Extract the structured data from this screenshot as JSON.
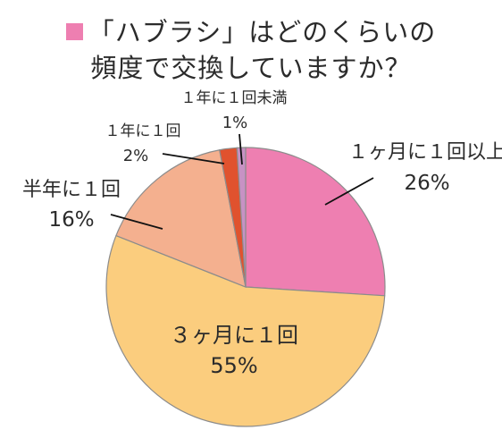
{
  "chart_data": {
    "type": "pie",
    "title_lines": [
      "「ハブラシ」はどのくらいの",
      "頻度で交換していますか？"
    ],
    "categories": [
      "１ヶ月に１回以上",
      "３ヶ月に１回",
      "半年に１回",
      "１年に１回",
      "１年に１回未満"
    ],
    "values": [
      26,
      55,
      16,
      2,
      1
    ],
    "value_labels": [
      "26%",
      "55%",
      "16%",
      "2%",
      "1%"
    ],
    "colors": [
      "#ee7fb1",
      "#fbcd7e",
      "#f4b08f",
      "#e0522e",
      "#c792c4"
    ],
    "legend_marker_color": "#ee7fb1"
  }
}
